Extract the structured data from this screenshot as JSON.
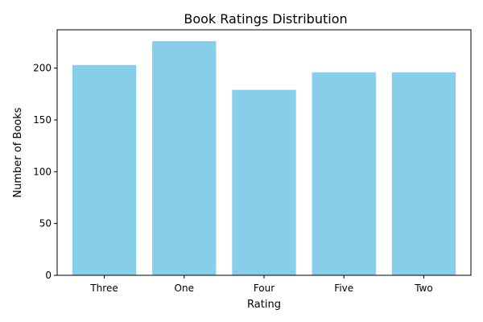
{
  "chart_data": {
    "type": "bar",
    "title": "Book Ratings Distribution",
    "xlabel": "Rating",
    "ylabel": "Number of Books",
    "categories": [
      "Three",
      "One",
      "Four",
      "Five",
      "Two"
    ],
    "values": [
      203,
      226,
      179,
      196,
      196
    ],
    "ylim": [
      0,
      237
    ],
    "yticks": [
      0,
      50,
      100,
      150,
      200
    ],
    "bar_color": "#87CEEB",
    "grid": false
  }
}
